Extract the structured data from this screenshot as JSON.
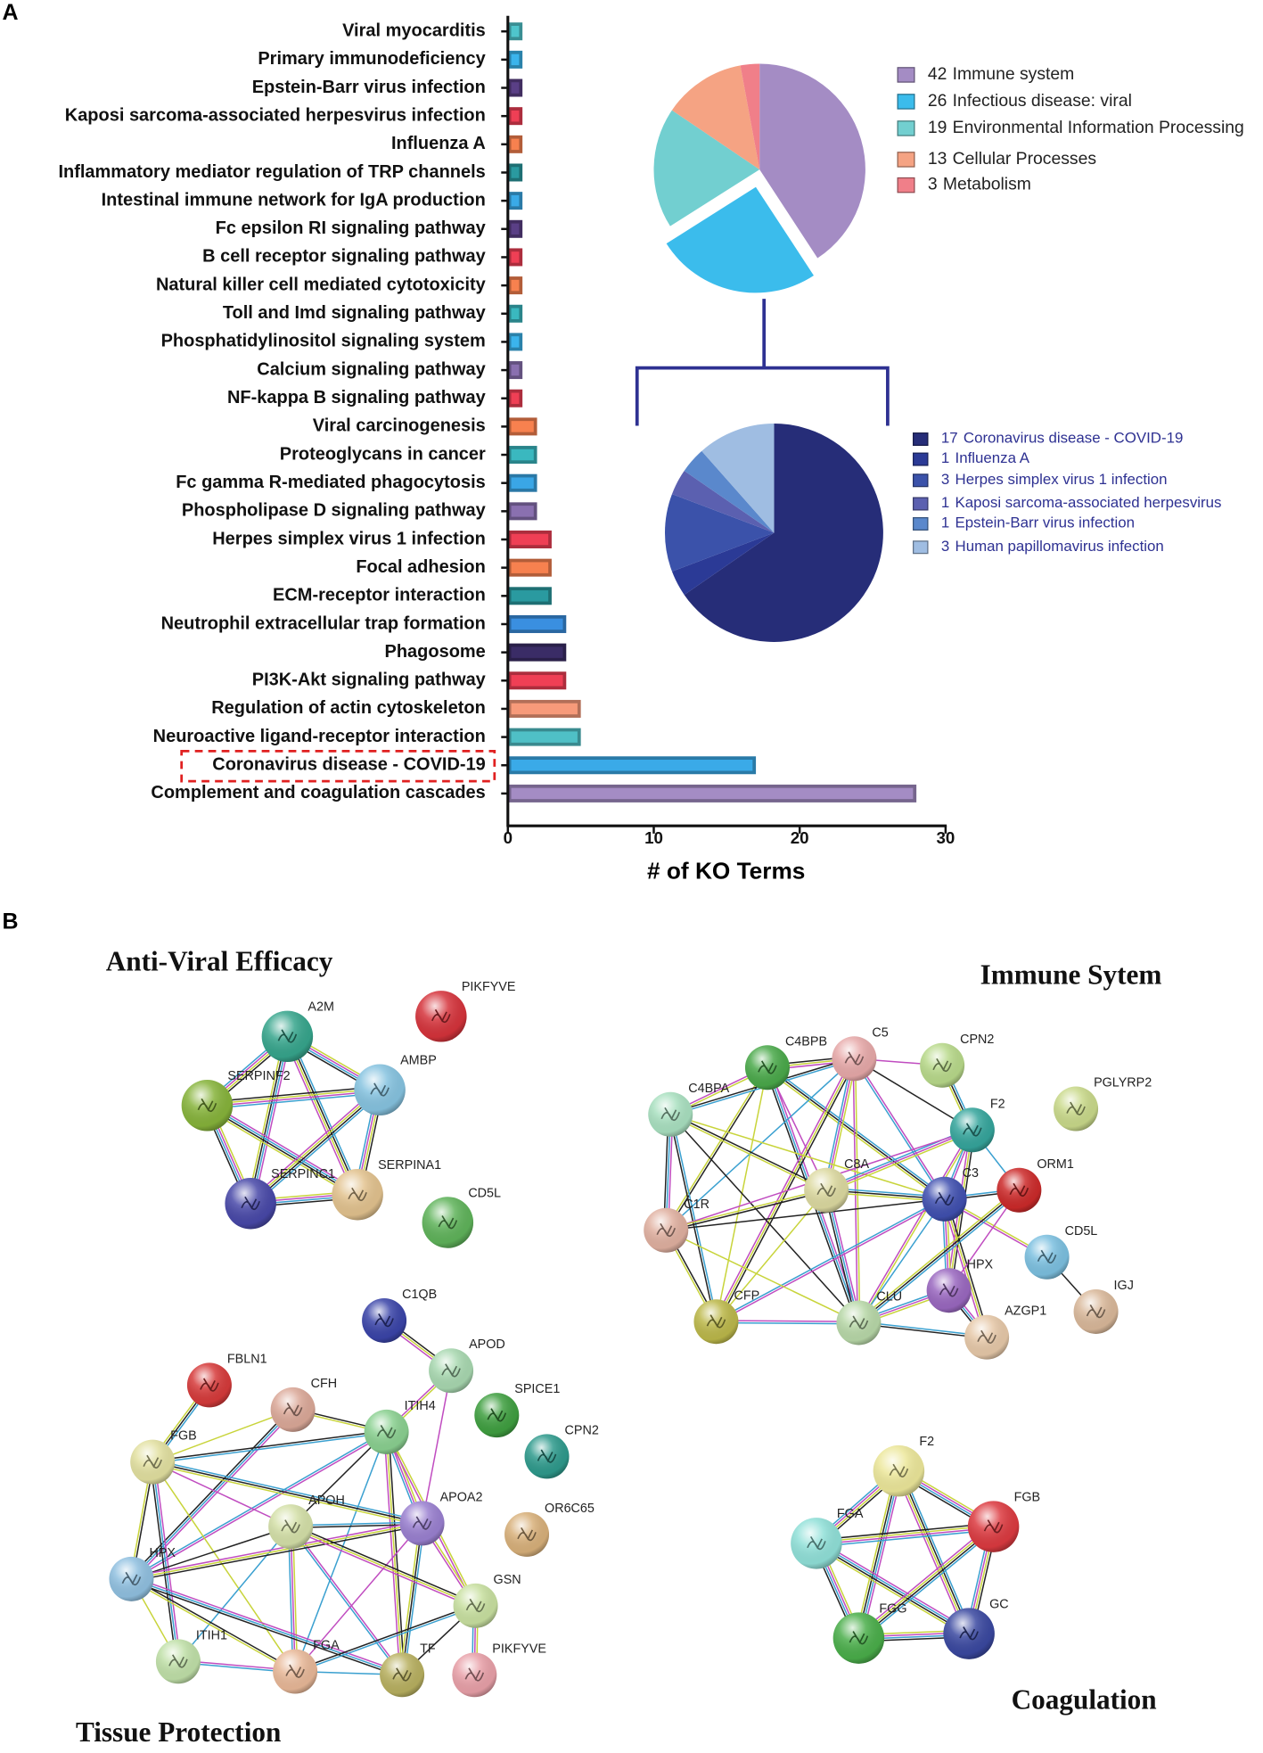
{
  "panel_labels": [
    "A",
    "B"
  ],
  "chart_data": [
    {
      "type": "bar",
      "orientation": "horizontal",
      "categories": [
        "Viral myocarditis",
        "Primary immunodeficiency",
        "Epstein-Barr virus infection",
        "Kaposi sarcoma-associated herpesvirus infection",
        "Influenza A",
        "Inflammatory mediator regulation of TRP channels",
        "Intestinal immune network for IgA production",
        "Fc epsilon RI signaling pathway",
        "B cell receptor signaling pathway",
        "Natural killer cell mediated cytotoxicity",
        "Toll and Imd signaling pathway",
        "Phosphatidylinositol signaling system",
        "Calcium signaling pathway",
        "NF-kappa B signaling pathway",
        "Viral carcinogenesis",
        "Proteoglycans in cancer",
        "Fc gamma R-mediated phagocytosis",
        "Phospholipase D signaling pathway",
        "Herpes simplex virus 1 infection",
        "Focal adhesion",
        "ECM-receptor interaction",
        "Neutrophil extracellular trap formation",
        "Phagosome",
        "PI3K-Akt signaling pathway",
        "Regulation of actin cytoskeleton",
        "Neuroactive ligand-receptor interaction",
        "Coronavirus disease - COVID-19",
        "Complement and coagulation cascades"
      ],
      "values": [
        1,
        1,
        1,
        1,
        1,
        1,
        1,
        1,
        1,
        1,
        1,
        1,
        1,
        1,
        2,
        2,
        2,
        2,
        3,
        3,
        3,
        4,
        4,
        4,
        5,
        5,
        17,
        28
      ],
      "colors": [
        "#4fc5cc",
        "#3bb4ec",
        "#5a3f86",
        "#ef3f55",
        "#f7814f",
        "#2a9aa0",
        "#3aaae8",
        "#5a3f86",
        "#ef3f55",
        "#f7814f",
        "#3ab8bf",
        "#3bb4ec",
        "#8a70b0",
        "#ef3f55",
        "#f7814f",
        "#3ab8bf",
        "#3aa6e6",
        "#8a70b0",
        "#ef3f55",
        "#f7814f",
        "#2a9aa0",
        "#3a8fe0",
        "#3a2c66",
        "#ef3f55",
        "#f79a7a",
        "#4fc0c6",
        "#3aaae8",
        "#a48cc4"
      ],
      "xlim": [
        0,
        30
      ],
      "xticks": [
        0,
        10,
        20,
        30
      ],
      "xlabel": "# of KO Terms"
    },
    {
      "type": "pie",
      "labels": [
        "Immune system",
        "Infectious disease: viral",
        "Environmental Information Processing",
        "Cellular Processes",
        "Metabolism"
      ],
      "values": [
        42,
        26,
        19,
        13,
        3
      ],
      "colors": [
        "#a48cc4",
        "#3bbcec",
        "#72cfd0",
        "#f5a383",
        "#f07f89"
      ],
      "explode_index": 1
    },
    {
      "type": "pie",
      "labels": [
        "Coronavirus disease - COVID-19",
        "Influenza A",
        "Herpes simplex virus 1 infection",
        "Kaposi sarcoma-associated herpesvirus",
        "Epstein-Barr virus infection",
        "Human papillomavirus infection"
      ],
      "values": [
        17,
        1,
        3,
        1,
        1,
        3
      ],
      "colors": [
        "#262d78",
        "#2b3a96",
        "#3b52aa",
        "#5b60b0",
        "#5a88cc",
        "#9fbde2"
      ]
    }
  ],
  "networks": [
    {
      "title": "Anti-Viral Efficacy",
      "nodes": [
        {
          "label": "A2M",
          "color": "#36a58c"
        },
        {
          "label": "PIKFYVE",
          "color": "#d5333b"
        },
        {
          "label": "SERPINF2",
          "color": "#86b33a"
        },
        {
          "label": "AMBP",
          "color": "#86c3e0"
        },
        {
          "label": "SERPINC1",
          "color": "#4848a8"
        },
        {
          "label": "SERPINA1",
          "color": "#e2c28e"
        },
        {
          "label": "CD5L",
          "color": "#5fb35a"
        }
      ]
    },
    {
      "title": "Immune Sytem",
      "nodes": [
        {
          "label": "C4BPB",
          "color": "#4aa94a"
        },
        {
          "label": "C5",
          "color": "#e7a9a9"
        },
        {
          "label": "CPN2",
          "color": "#b8d98a"
        },
        {
          "label": "PGLYRP2",
          "color": "#c9d98a"
        },
        {
          "label": "C4BPA",
          "color": "#a9e0c0"
        },
        {
          "label": "F2",
          "color": "#35a59c"
        },
        {
          "label": "C8A",
          "color": "#dcd9a0"
        },
        {
          "label": "C3",
          "color": "#4050b0"
        },
        {
          "label": "ORM1",
          "color": "#cc2a2a"
        },
        {
          "label": "C1R",
          "color": "#e0b0a0"
        },
        {
          "label": "CD5L",
          "color": "#7cc0e0"
        },
        {
          "label": "HPX",
          "color": "#9a68c0"
        },
        {
          "label": "IGJ",
          "color": "#d9b89a"
        },
        {
          "label": "CFP",
          "color": "#bcb84a"
        },
        {
          "label": "CLU",
          "color": "#b8d8a8"
        },
        {
          "label": "AZGP1",
          "color": "#e6c8a8"
        }
      ]
    },
    {
      "title": "Tissue Protection",
      "nodes": [
        {
          "label": "C1QB",
          "color": "#3a44a8"
        },
        {
          "label": "APOD",
          "color": "#a8d8b0"
        },
        {
          "label": "FBLN1",
          "color": "#d63a3a"
        },
        {
          "label": "CFH",
          "color": "#dba898"
        },
        {
          "label": "SPICE1",
          "color": "#3f9f40"
        },
        {
          "label": "ITIH4",
          "color": "#8ad090"
        },
        {
          "label": "CPN2",
          "color": "#2e9a8c"
        },
        {
          "label": "FGB",
          "color": "#e2e0a0"
        },
        {
          "label": "OR6C65",
          "color": "#d8b07a"
        },
        {
          "label": "APOH",
          "color": "#d4e0a8"
        },
        {
          "label": "APOA2",
          "color": "#9a80d0"
        },
        {
          "label": "HPX",
          "color": "#90c0e0"
        },
        {
          "label": "GSN",
          "color": "#c8e0a0"
        },
        {
          "label": "ITIH1",
          "color": "#c0e0a8"
        },
        {
          "label": "FGA",
          "color": "#e8b898"
        },
        {
          "label": "TF",
          "color": "#b8b060"
        },
        {
          "label": "PIKFYVE",
          "color": "#e8a0a8"
        }
      ]
    },
    {
      "title": "Coagulation",
      "nodes": [
        {
          "label": "F2",
          "color": "#ece79a"
        },
        {
          "label": "FGA",
          "color": "#90e0d8"
        },
        {
          "label": "FGB",
          "color": "#dc3a40"
        },
        {
          "label": "FGG",
          "color": "#4aae4a"
        },
        {
          "label": "GC",
          "color": "#3a48a0"
        }
      ]
    }
  ]
}
